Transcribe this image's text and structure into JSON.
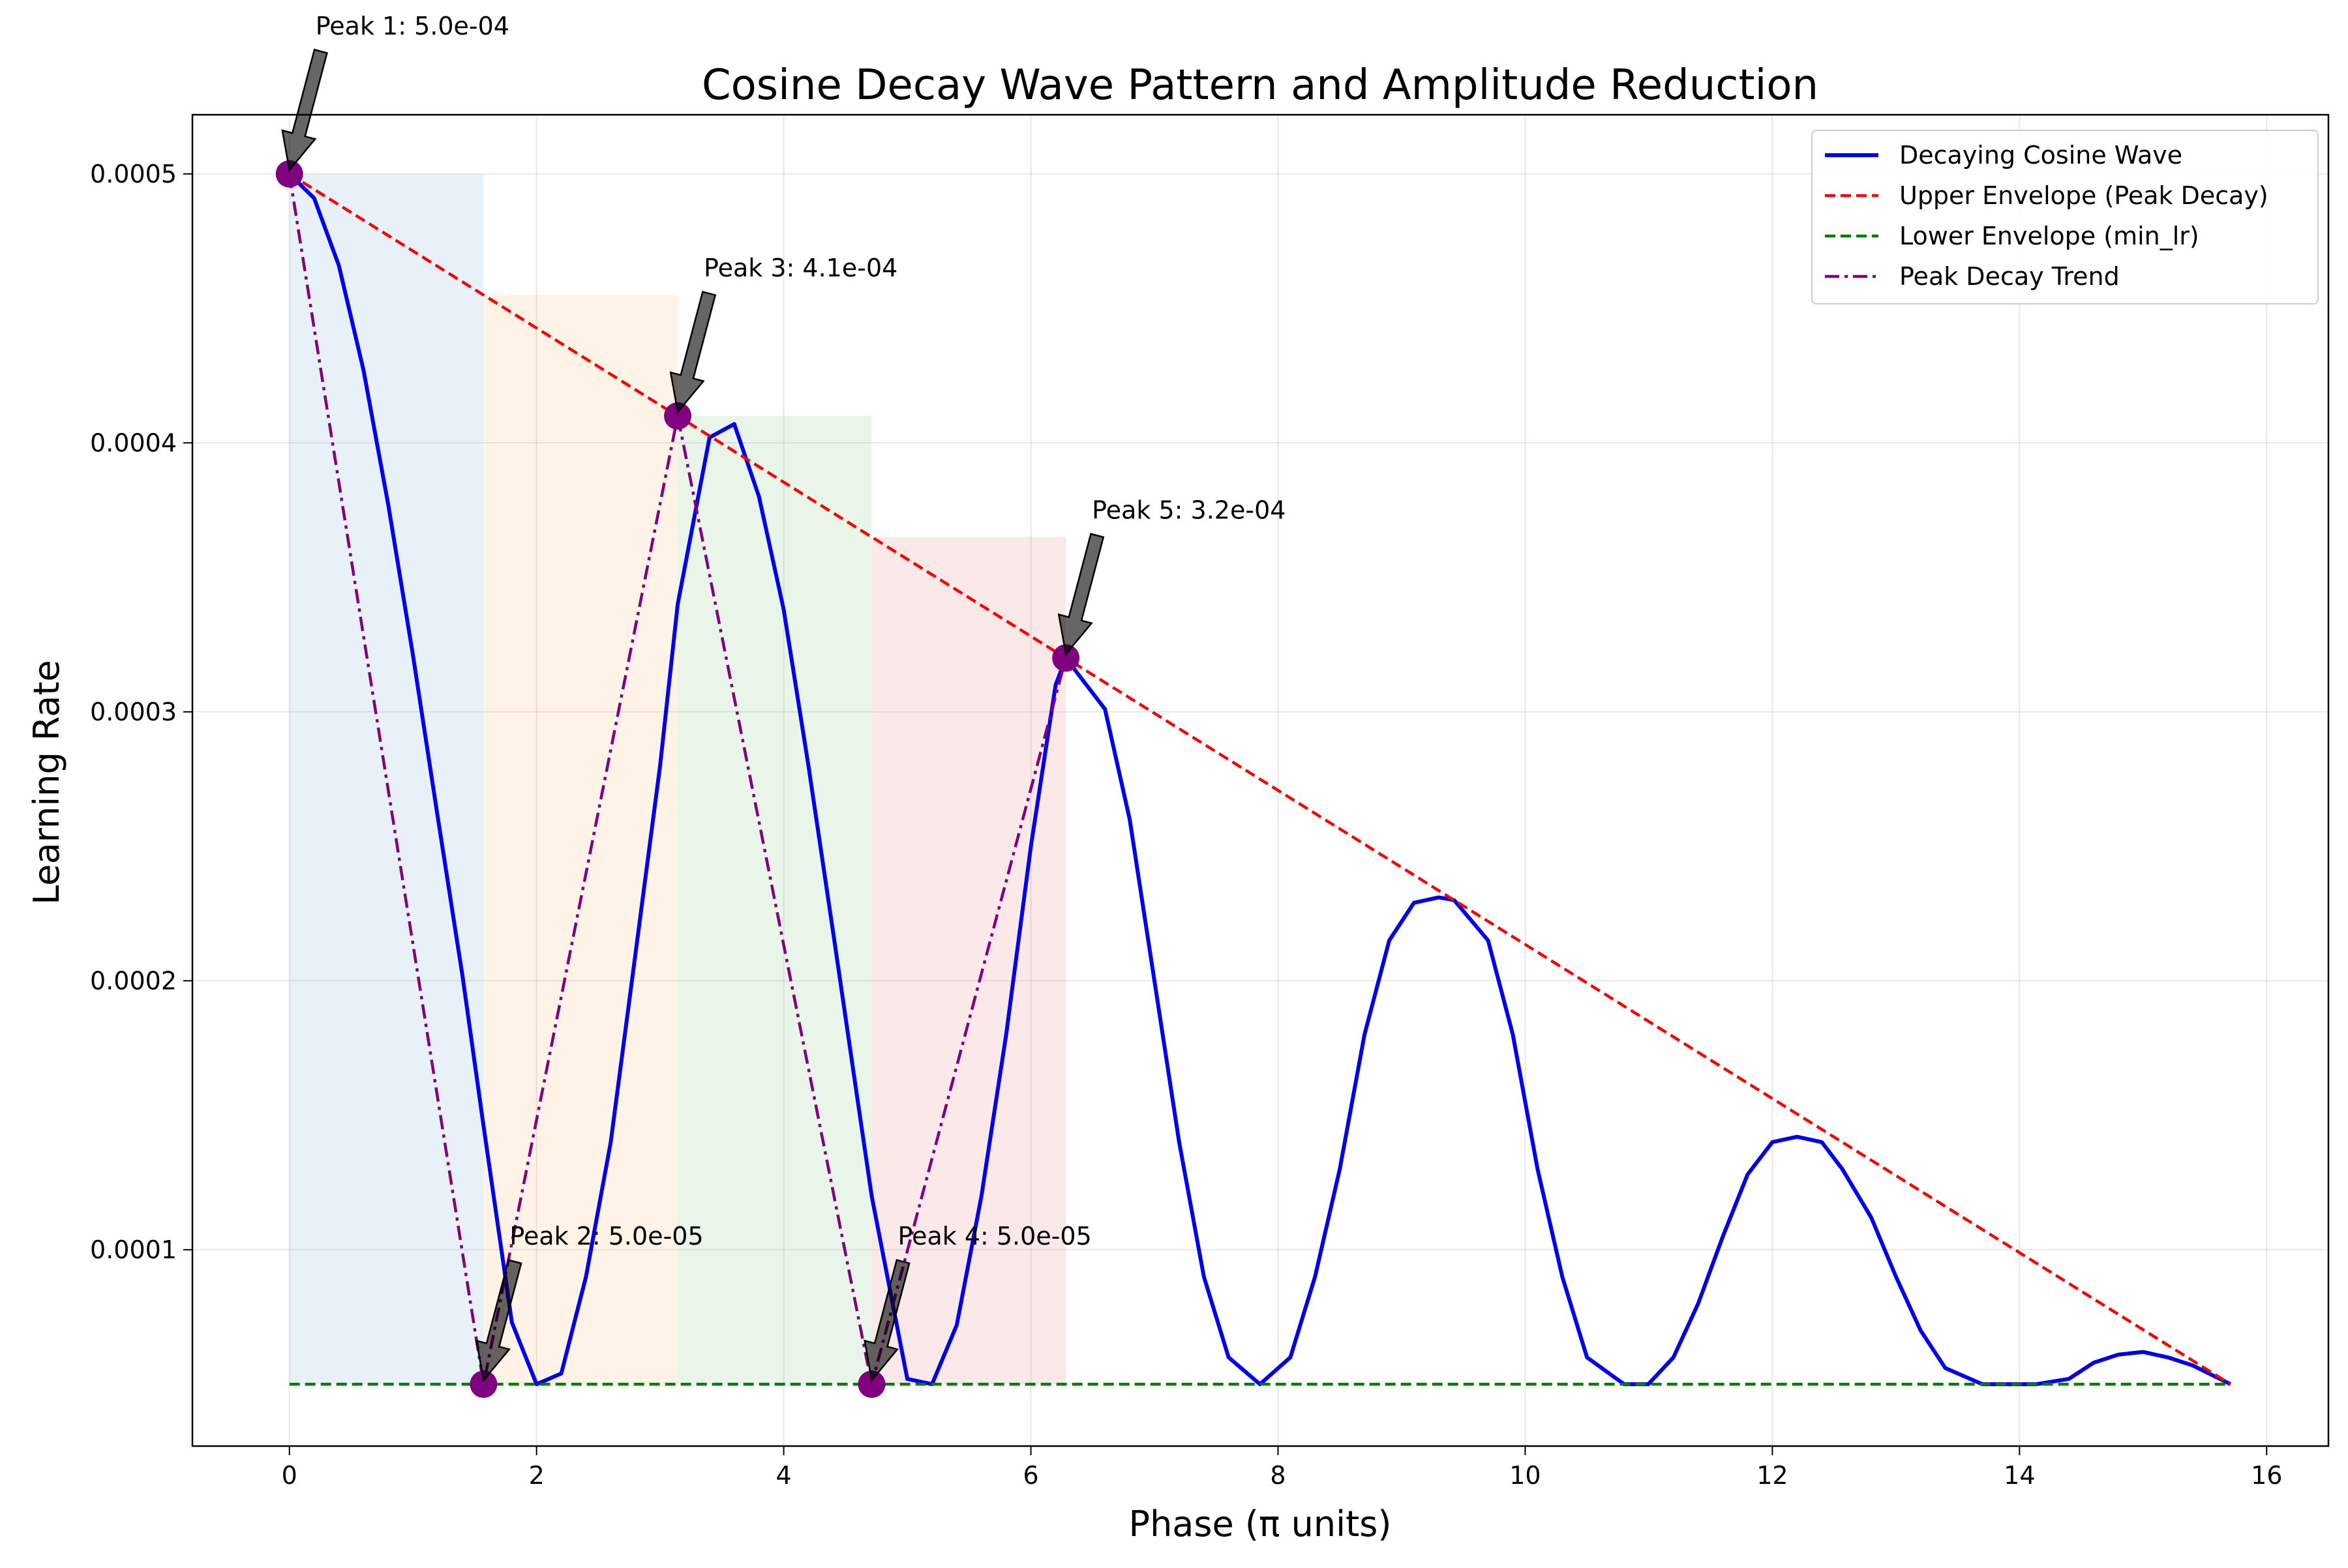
{
  "chart_data": {
    "type": "line",
    "title": "Cosine Decay Wave Pattern and Amplitude Reduction",
    "xlabel": "Phase (π units)",
    "ylabel": "Learning Rate",
    "xlim": [
      -0.785,
      16.5
    ],
    "ylim": [
      2.7e-05,
      0.000522
    ],
    "x_ticks": [
      0,
      2,
      4,
      6,
      8,
      10,
      12,
      14,
      16
    ],
    "x_tick_labels": [
      "0",
      "2",
      "4",
      "6",
      "8",
      "10",
      "12",
      "14",
      "16"
    ],
    "y_ticks": [
      0.0001,
      0.0002,
      0.0003,
      0.0004,
      0.0005
    ],
    "y_tick_labels": [
      "0.0001",
      "0.0002",
      "0.0003",
      "0.0004",
      "0.0005"
    ],
    "grid": true,
    "legend_position": "top-right",
    "series": [
      {
        "name": "Decaying Cosine Wave",
        "style": "solid",
        "color": "#0000ee",
        "x": [
          0,
          0.2,
          0.4,
          0.6,
          0.8,
          1.0,
          1.2,
          1.4,
          1.571,
          1.8,
          2.0,
          2.2,
          2.4,
          2.6,
          2.8,
          3.0,
          3.142,
          3.4,
          3.6,
          3.8,
          4.0,
          4.2,
          4.4,
          4.6,
          4.712,
          5.0,
          5.2,
          5.4,
          5.6,
          5.8,
          6.0,
          6.2,
          6.283,
          6.6,
          6.8,
          7.0,
          7.2,
          7.4,
          7.6,
          7.854,
          8.1,
          8.3,
          8.5,
          8.7,
          8.9,
          9.1,
          9.3,
          9.425,
          9.7,
          9.9,
          10.1,
          10.3,
          10.5,
          10.8,
          10.996,
          11.2,
          11.4,
          11.6,
          11.8,
          12.0,
          12.2,
          12.4,
          12.566,
          12.8,
          13.0,
          13.2,
          13.4,
          13.7,
          14.137,
          14.4,
          14.6,
          14.8,
          15.0,
          15.2,
          15.4,
          15.708
        ],
        "y": [
          0.0005,
          0.000491,
          0.000466,
          0.000427,
          0.000377,
          0.000321,
          0.000261,
          0.000202,
          0.000146,
          7.3e-05,
          5e-05,
          5.4e-05,
          9e-05,
          0.00014,
          0.00021,
          0.00028,
          0.00034,
          0.000402,
          0.000407,
          0.00038,
          0.000338,
          0.00028,
          0.000218,
          0.000155,
          0.00012,
          5.2e-05,
          5e-05,
          7.2e-05,
          0.00012,
          0.00018,
          0.00025,
          0.00031,
          0.00032,
          0.000301,
          0.00026,
          0.0002,
          0.00014,
          9e-05,
          6e-05,
          5e-05,
          6e-05,
          9e-05,
          0.00013,
          0.00018,
          0.000215,
          0.000229,
          0.000231,
          0.00023,
          0.000215,
          0.00018,
          0.00013,
          9e-05,
          6e-05,
          5e-05,
          5e-05,
          6e-05,
          8e-05,
          0.000105,
          0.000128,
          0.00014,
          0.000142,
          0.00014,
          0.00013,
          0.000112,
          9e-05,
          7e-05,
          5.6e-05,
          5e-05,
          5e-05,
          5.2e-05,
          5.8e-05,
          6.1e-05,
          6.2e-05,
          6e-05,
          5.7e-05,
          5e-05
        ]
      },
      {
        "name": "Upper Envelope (Peak Decay)",
        "style": "dashed",
        "color": "#ff0000",
        "x": [
          0,
          15.708
        ],
        "y": [
          0.0005,
          5e-05
        ]
      },
      {
        "name": "Lower Envelope (min_lr)",
        "style": "dashed",
        "color": "#008000",
        "x": [
          0,
          15.708
        ],
        "y": [
          5e-05,
          5e-05
        ]
      },
      {
        "name": "Peak Decay Trend",
        "style": "dashdot",
        "color": "#800080",
        "x": [
          0,
          1.571,
          3.142,
          4.712,
          6.283
        ],
        "y": [
          0.0005,
          5e-05,
          0.00041,
          5e-05,
          0.00032
        ]
      }
    ],
    "shaded_regions": [
      {
        "x0": 0,
        "x1": 1.571,
        "color": "#1f77b4"
      },
      {
        "x0": 1.571,
        "x1": 3.142,
        "color": "#ff7f0e"
      },
      {
        "x0": 3.142,
        "x1": 4.712,
        "color": "#2ca02c"
      },
      {
        "x0": 4.712,
        "x1": 6.283,
        "color": "#d62728"
      }
    ],
    "peaks": [
      {
        "x": 0,
        "y": 0.0005,
        "label": "Peak 1: 5.0e-04"
      },
      {
        "x": 1.571,
        "y": 5e-05,
        "label": "Peak 2: 5.0e-05"
      },
      {
        "x": 3.142,
        "y": 0.00041,
        "label": "Peak 3: 4.1e-04"
      },
      {
        "x": 4.712,
        "y": 5e-05,
        "label": "Peak 4: 5.0e-05"
      },
      {
        "x": 6.283,
        "y": 0.00032,
        "label": "Peak 5: 3.2e-04"
      }
    ]
  }
}
